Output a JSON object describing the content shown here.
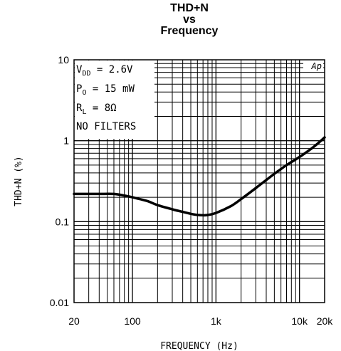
{
  "chart_data": {
    "type": "line",
    "title_lines": [
      "THD+N",
      "vs",
      "Frequency"
    ],
    "xlabel": "FREQUENCY (Hz)",
    "ylabel": "THD+N (%)",
    "xscale": "log",
    "yscale": "log",
    "xlim": [
      20,
      20000
    ],
    "ylim": [
      0.01,
      10
    ],
    "x_tick_labels": [
      "20",
      "100",
      "1k",
      "10k",
      "20k"
    ],
    "x_tick_values": [
      20,
      100,
      1000,
      10000,
      20000
    ],
    "y_tick_labels": [
      "0.01",
      "0.1",
      "1",
      "10"
    ],
    "y_tick_values": [
      0.01,
      0.1,
      1,
      10
    ],
    "grid": true,
    "conditions": [
      {
        "main": "V",
        "sub": "DD",
        "rest": " = 2.6V"
      },
      {
        "main": "P",
        "sub": "O",
        "rest": " = 15 mW"
      },
      {
        "main": "R",
        "sub": "L",
        "rest": " = 8Ω"
      },
      {
        "main": "NO FILTERS",
        "sub": "",
        "rest": ""
      }
    ],
    "watermark": "Ap",
    "series": [
      {
        "x": [
          20,
          30,
          40,
          60,
          80,
          100,
          150,
          200,
          300,
          400,
          500,
          600,
          700,
          800,
          1000,
          1500,
          2000,
          3000,
          5000,
          7000,
          10000,
          15000,
          20000
        ],
        "y": [
          0.22,
          0.22,
          0.22,
          0.22,
          0.21,
          0.2,
          0.18,
          0.16,
          0.142,
          0.132,
          0.125,
          0.121,
          0.12,
          0.121,
          0.128,
          0.155,
          0.19,
          0.26,
          0.39,
          0.5,
          0.63,
          0.85,
          1.1
        ]
      }
    ]
  }
}
